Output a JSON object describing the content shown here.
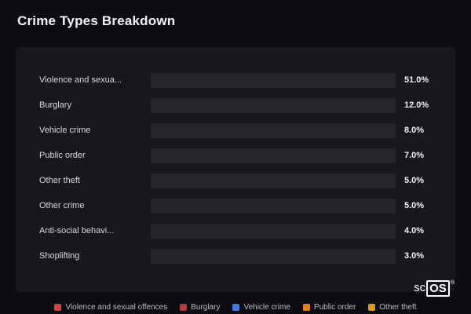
{
  "title": "Crime Types Breakdown",
  "chart_data": {
    "type": "bar",
    "orientation": "horizontal",
    "title": "Crime Types Breakdown",
    "categories": [
      "Violence and sexual offences",
      "Burglary",
      "Vehicle crime",
      "Public order",
      "Other theft",
      "Other crime",
      "Anti-social behaviour",
      "Shoplifting"
    ],
    "display_labels": [
      "Violence and sexua...",
      "Burglary",
      "Vehicle crime",
      "Public order",
      "Other theft",
      "Other crime",
      "Anti-social behavi...",
      "Shoplifting"
    ],
    "values": [
      51.0,
      12.0,
      8.0,
      7.0,
      5.0,
      5.0,
      4.0,
      3.0
    ],
    "value_labels": [
      "51.0%",
      "12.0%",
      "8.0%",
      "7.0%",
      "5.0%",
      "5.0%",
      "4.0%",
      "3.0%"
    ],
    "bar_colors": [
      "#d53e43",
      "#c33438",
      "#3d7ae4",
      "#e2811f",
      "#d79a1b",
      "#94a3b5",
      "#7e8fa2",
      "#bf9c20"
    ],
    "xlim": [
      0,
      51
    ],
    "grid": false,
    "legend_position": "bottom"
  },
  "legend": {
    "items": [
      {
        "label": "Violence and sexual offences",
        "color": "#d53e43"
      },
      {
        "label": "Burglary",
        "color": "#c33438"
      },
      {
        "label": "Vehicle crime",
        "color": "#3d7ae4"
      },
      {
        "label": "Public order",
        "color": "#e2811f"
      },
      {
        "label": "Other theft",
        "color": "#d79a1b"
      }
    ]
  },
  "watermark": {
    "prefix": "sc",
    "boxed": "OS",
    "reg": "®"
  },
  "colors": {
    "background": "#0c0d11",
    "card": "#17181d",
    "track": "#24262c"
  }
}
